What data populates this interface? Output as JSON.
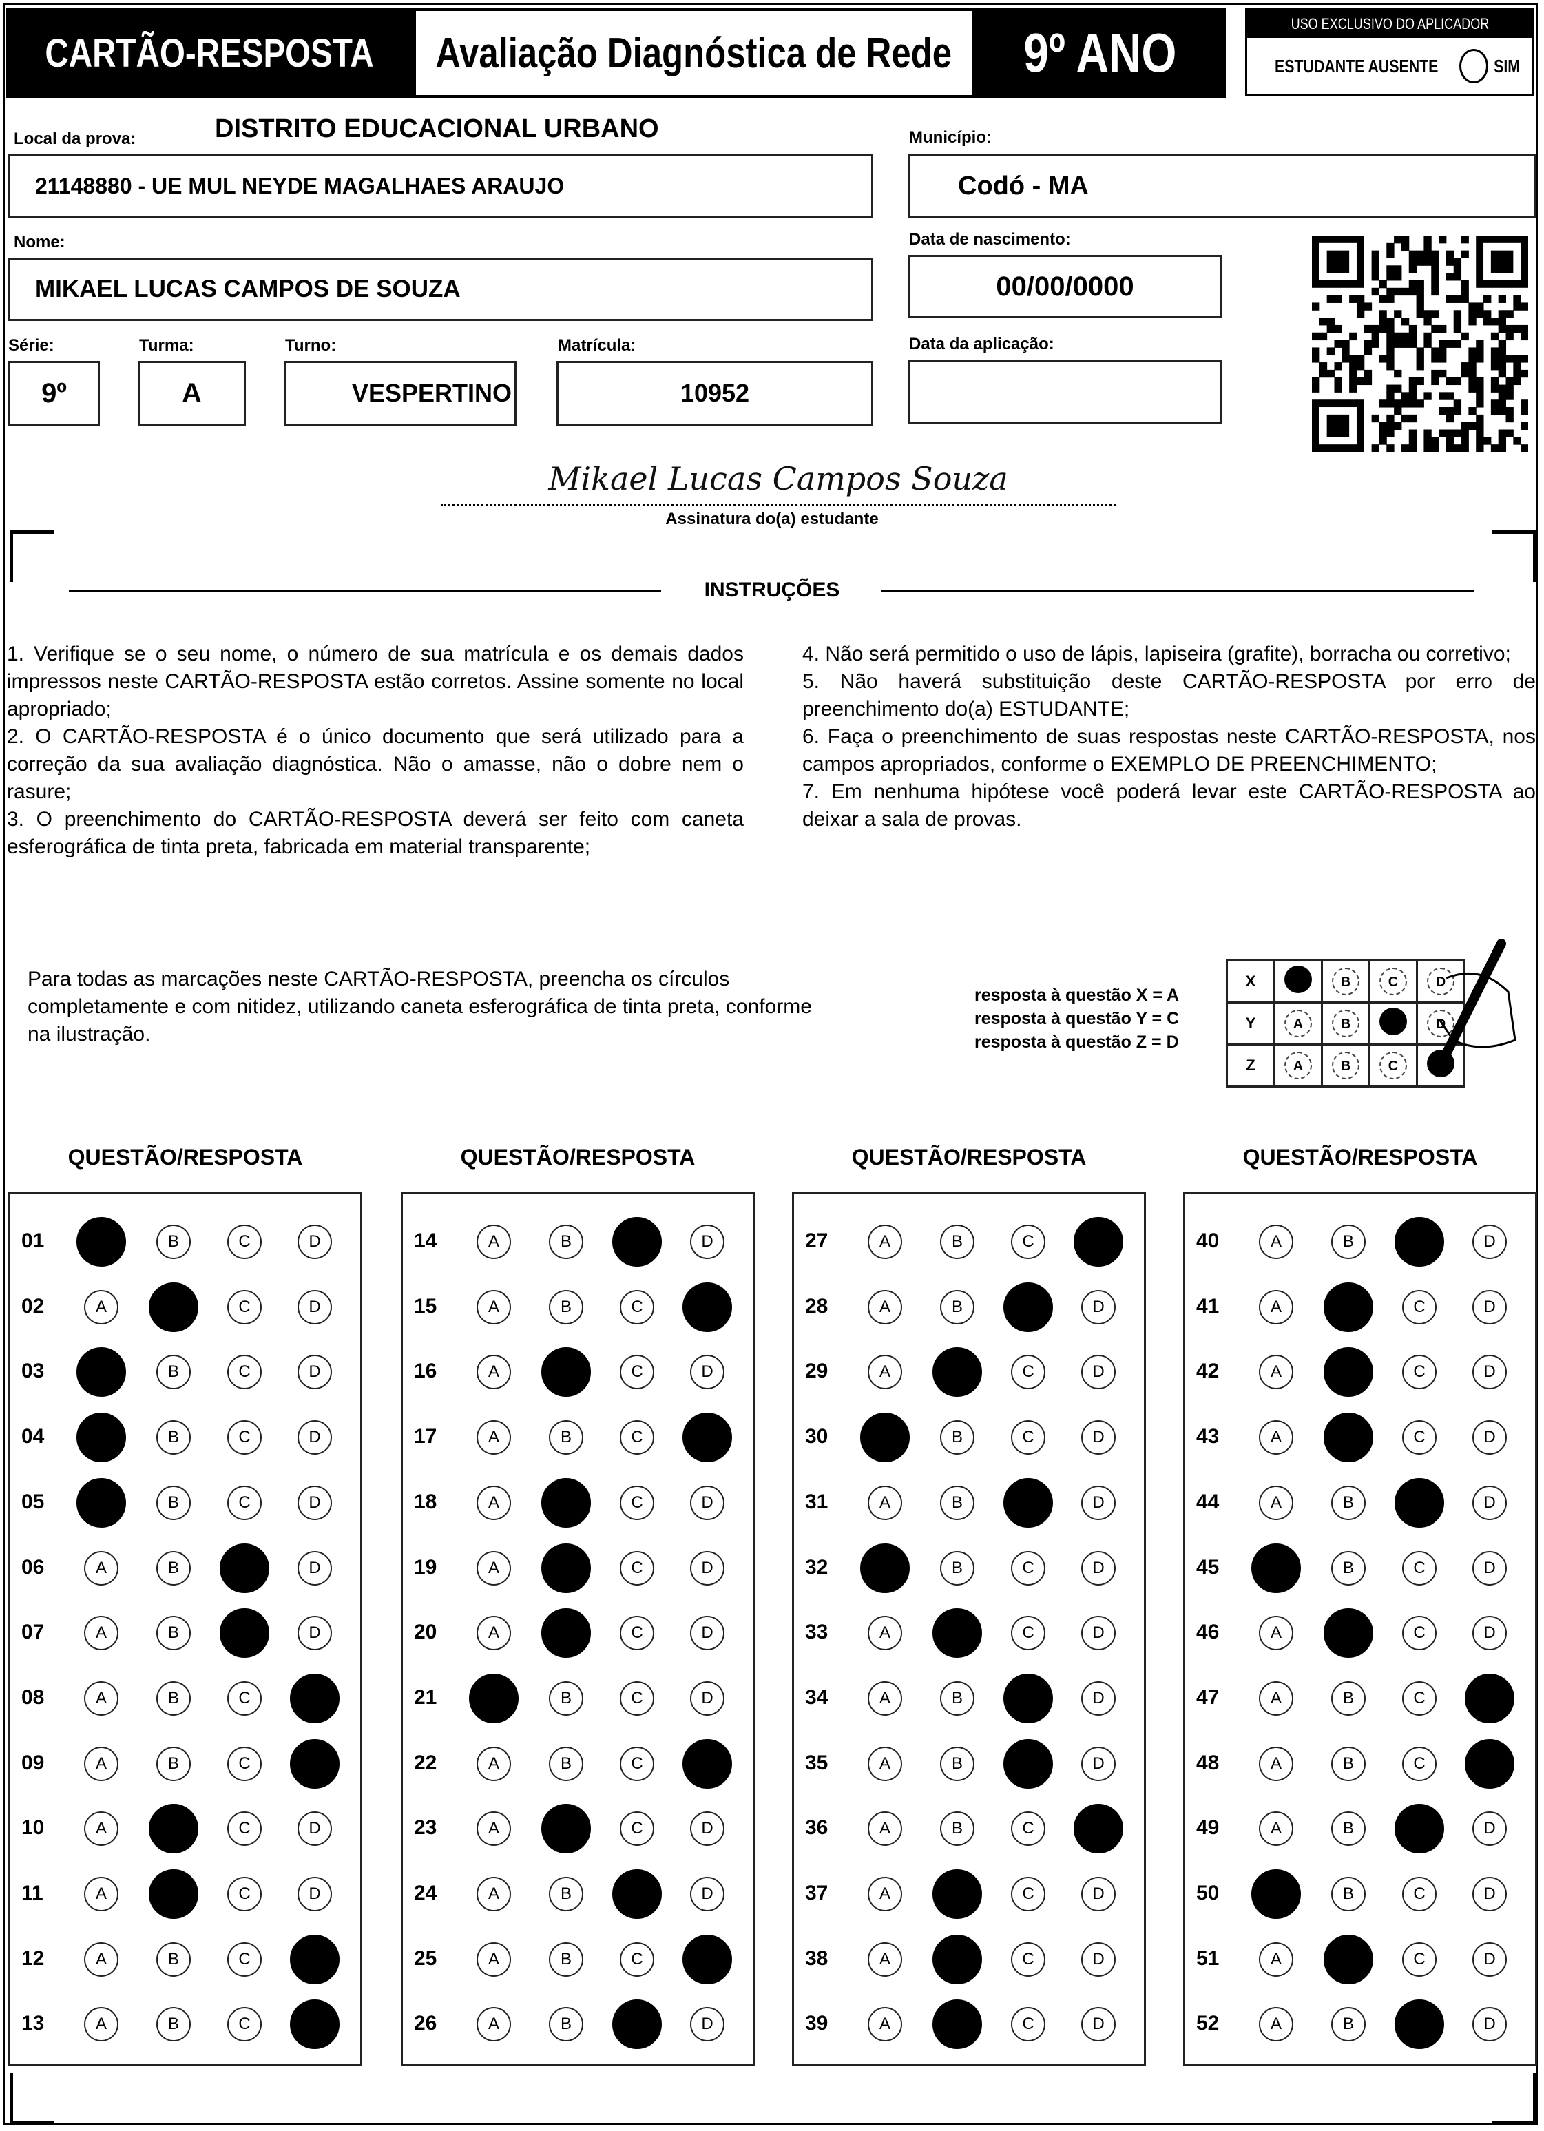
{
  "header": {
    "card_label": "CARTÃO-RESPOSTA",
    "title": "Avaliação Diagnóstica de Rede",
    "grade": "9º ANO",
    "applicator_box": {
      "title": "USO EXCLUSIVO DO APLICADOR",
      "absent_label": "ESTUDANTE AUSENTE",
      "yes_label": "SIM"
    }
  },
  "form": {
    "district": "DISTRITO EDUCACIONAL URBANO",
    "local_label": "Local da prova:",
    "local_value": "21148880 - UE MUL NEYDE MAGALHAES ARAUJO",
    "municipio_label": "Município:",
    "municipio_value": "Codó - MA",
    "nome_label": "Nome:",
    "nome_value": "MIKAEL LUCAS CAMPOS DE SOUZA",
    "nascimento_label": "Data de nascimento:",
    "nascimento_value": "00/00/0000",
    "serie_label": "Série:",
    "serie_value": "9º",
    "turma_label": "Turma:",
    "turma_value": "A",
    "turno_label": "Turno:",
    "turno_value": "VESPERTINO",
    "matricula_label": "Matrícula:",
    "matricula_value": "10952",
    "aplicacao_label": "Data da aplicação:",
    "aplicacao_value": "",
    "signature": "Mikael Lucas Campos Souza",
    "signature_label": "Assinatura do(a) estudante"
  },
  "instructions": {
    "title": "INSTRUÇÕES",
    "left": [
      "1. Verifique se o seu nome, o número de sua matrícula e os demais dados impressos neste CARTÃO-RESPOSTA estão corretos. Assine somente no local apropriado;",
      "2. O CARTÃO-RESPOSTA é o único documento que será utilizado para a correção da sua avaliação diagnóstica. Não o amasse, não o dobre nem o rasure;",
      "3. O preenchimento do CARTÃO-RESPOSTA deverá ser feito com caneta esferográfica de tinta preta, fabricada em material transparente;"
    ],
    "right": [
      "4. Não será permitido o uso de lápis, lapiseira (grafite), borracha ou corretivo;",
      "5. Não haverá substituição deste CARTÃO-RESPOSTA por erro de preenchimento do(a) ESTUDANTE;",
      "6. Faça o preenchimento de suas respostas neste CARTÃO-RESPOSTA, nos campos apropriados, conforme o EXEMPLO DE PREENCHIMENTO;",
      "7. Em nenhuma hipótese você poderá levar este CARTÃO-RESPOSTA ao deixar a sala de provas."
    ]
  },
  "fill_notice": "Para todas as marcações neste CARTÃO-RESPOSTA, preencha os círculos completamente e com nitidez, utilizando caneta esferográfica de tinta preta, conforme na ilustração.",
  "example": {
    "lines": [
      "resposta à questão X = A",
      "resposta à questão Y = C",
      "resposta à questão Z = D"
    ],
    "rows": [
      {
        "q": "X",
        "marked": "A"
      },
      {
        "q": "Y",
        "marked": "C"
      },
      {
        "q": "Z",
        "marked": "D"
      }
    ]
  },
  "answers": {
    "column_header": "QUESTÃO/RESPOSTA",
    "options": [
      "A",
      "B",
      "C",
      "D"
    ],
    "columns": [
      [
        {
          "num": "01",
          "marked": "A"
        },
        {
          "num": "02",
          "marked": "B"
        },
        {
          "num": "03",
          "marked": "A"
        },
        {
          "num": "04",
          "marked": "A"
        },
        {
          "num": "05",
          "marked": "A"
        },
        {
          "num": "06",
          "marked": "C"
        },
        {
          "num": "07",
          "marked": "C"
        },
        {
          "num": "08",
          "marked": "D"
        },
        {
          "num": "09",
          "marked": "D"
        },
        {
          "num": "10",
          "marked": "B"
        },
        {
          "num": "11",
          "marked": "B"
        },
        {
          "num": "12",
          "marked": "D"
        },
        {
          "num": "13",
          "marked": "D"
        }
      ],
      [
        {
          "num": "14",
          "marked": "C"
        },
        {
          "num": "15",
          "marked": "D"
        },
        {
          "num": "16",
          "marked": "B"
        },
        {
          "num": "17",
          "marked": "D"
        },
        {
          "num": "18",
          "marked": "B"
        },
        {
          "num": "19",
          "marked": "B"
        },
        {
          "num": "20",
          "marked": "B"
        },
        {
          "num": "21",
          "marked": "A"
        },
        {
          "num": "22",
          "marked": "D"
        },
        {
          "num": "23",
          "marked": "B"
        },
        {
          "num": "24",
          "marked": "C"
        },
        {
          "num": "25",
          "marked": "D"
        },
        {
          "num": "26",
          "marked": "C"
        }
      ],
      [
        {
          "num": "27",
          "marked": "D"
        },
        {
          "num": "28",
          "marked": "C"
        },
        {
          "num": "29",
          "marked": "B"
        },
        {
          "num": "30",
          "marked": "A"
        },
        {
          "num": "31",
          "marked": "C"
        },
        {
          "num": "32",
          "marked": "A"
        },
        {
          "num": "33",
          "marked": "B"
        },
        {
          "num": "34",
          "marked": "C"
        },
        {
          "num": "35",
          "marked": "C"
        },
        {
          "num": "36",
          "marked": "D"
        },
        {
          "num": "37",
          "marked": "B"
        },
        {
          "num": "38",
          "marked": "B"
        },
        {
          "num": "39",
          "marked": "B"
        }
      ],
      [
        {
          "num": "40",
          "marked": "C"
        },
        {
          "num": "41",
          "marked": "B"
        },
        {
          "num": "42",
          "marked": "B"
        },
        {
          "num": "43",
          "marked": "B"
        },
        {
          "num": "44",
          "marked": "C"
        },
        {
          "num": "45",
          "marked": "A"
        },
        {
          "num": "46",
          "marked": "B"
        },
        {
          "num": "47",
          "marked": "D"
        },
        {
          "num": "48",
          "marked": "D"
        },
        {
          "num": "49",
          "marked": "C"
        },
        {
          "num": "50",
          "marked": "A"
        },
        {
          "num": "51",
          "marked": "B"
        },
        {
          "num": "52",
          "marked": "C"
        }
      ]
    ]
  }
}
